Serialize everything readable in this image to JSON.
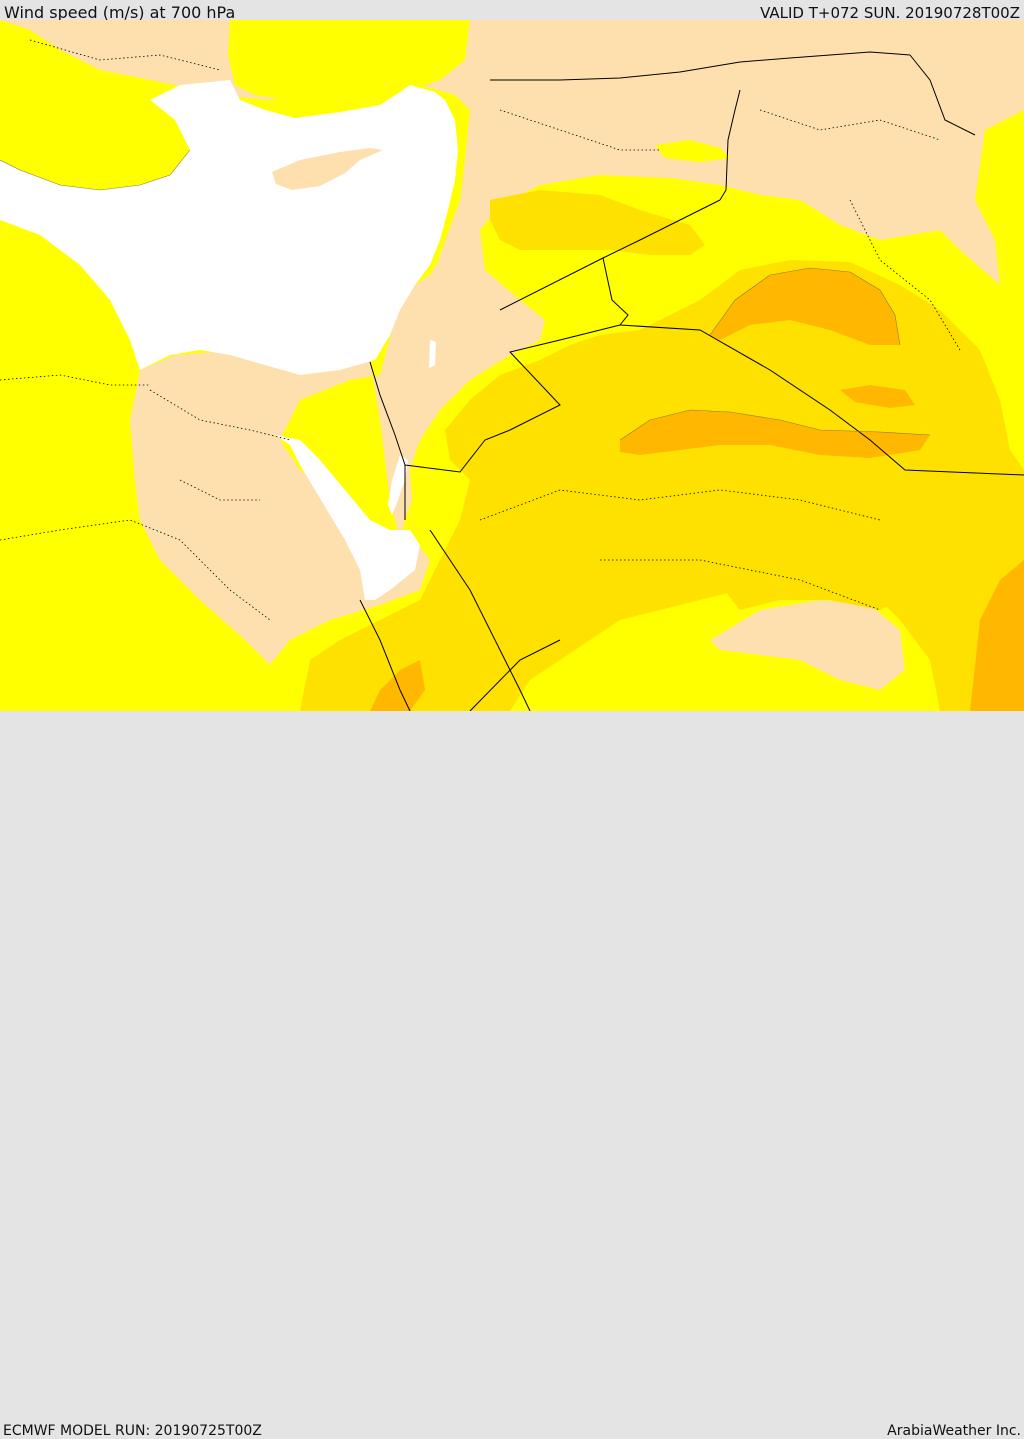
{
  "header": {
    "title": "Wind speed (m/s) at 700 hPa",
    "valid": "VALID T+072 SUN. 20190728T00Z"
  },
  "footer": {
    "model_run": "ECMWF MODEL RUN: 20190725T00Z",
    "credit": "ArabiaWeather Inc."
  },
  "colors": {
    "sea": "#ffffff",
    "calm": "#fde0ad",
    "light": "#ffff00",
    "moderate": "#ffe100",
    "strong": "#ffb700",
    "border": "#000000"
  }
}
